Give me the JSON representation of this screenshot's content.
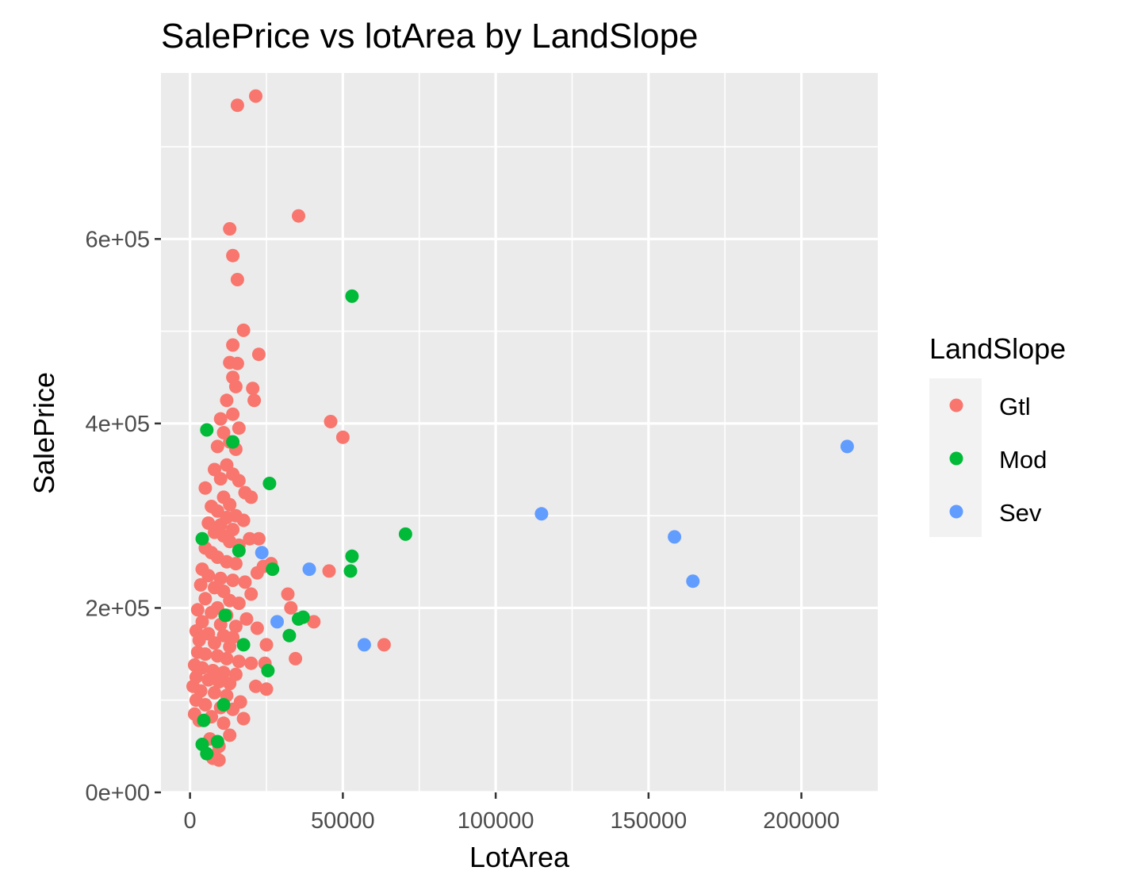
{
  "chart_data": {
    "type": "scatter",
    "title": "SalePrice vs lotArea by LandSlope",
    "xlabel": "LotArea",
    "ylabel": "SalePrice",
    "xlim": [
      -9500,
      225000
    ],
    "ylim": [
      0,
      780000
    ],
    "x_ticks": [
      0,
      50000,
      100000,
      150000,
      200000
    ],
    "x_tick_labels": [
      "0",
      "50000",
      "100000",
      "150000",
      "200000"
    ],
    "y_ticks": [
      0,
      200000,
      400000,
      600000
    ],
    "y_tick_labels": [
      "0e+00",
      "2e+05",
      "4e+05",
      "6e+05"
    ],
    "grid": true,
    "legend": {
      "title": "LandSlope",
      "position": "right"
    },
    "series": [
      {
        "name": "Gtl",
        "color": "#F8766D",
        "points": [
          [
            15500,
            745000
          ],
          [
            21500,
            755000
          ],
          [
            35500,
            625000
          ],
          [
            13000,
            611000
          ],
          [
            14000,
            582000
          ],
          [
            15500,
            556000
          ],
          [
            17500,
            501000
          ],
          [
            14000,
            485000
          ],
          [
            22500,
            475000
          ],
          [
            13000,
            466000
          ],
          [
            15500,
            465000
          ],
          [
            14000,
            450000
          ],
          [
            15000,
            440000
          ],
          [
            20500,
            438000
          ],
          [
            21000,
            425000
          ],
          [
            12000,
            425000
          ],
          [
            46000,
            402000
          ],
          [
            50000,
            385000
          ],
          [
            14000,
            410000
          ],
          [
            10000,
            405000
          ],
          [
            16000,
            395000
          ],
          [
            11000,
            390000
          ],
          [
            13000,
            380000
          ],
          [
            9000,
            375000
          ],
          [
            15000,
            372000
          ],
          [
            8000,
            350000
          ],
          [
            12000,
            355000
          ],
          [
            14000,
            345000
          ],
          [
            10000,
            340000
          ],
          [
            16000,
            338000
          ],
          [
            5000,
            330000
          ],
          [
            18000,
            325000
          ],
          [
            11000,
            320000
          ],
          [
            20000,
            320000
          ],
          [
            13000,
            312000
          ],
          [
            7000,
            310000
          ],
          [
            9000,
            305000
          ],
          [
            15000,
            300000
          ],
          [
            12000,
            298000
          ],
          [
            17500,
            295000
          ],
          [
            6000,
            292000
          ],
          [
            10000,
            290000
          ],
          [
            14000,
            285000
          ],
          [
            19500,
            275000
          ],
          [
            22500,
            275000
          ],
          [
            8000,
            282000
          ],
          [
            11000,
            278000
          ],
          [
            13000,
            272000
          ],
          [
            16000,
            268000
          ],
          [
            5000,
            265000
          ],
          [
            7000,
            260000
          ],
          [
            9000,
            255000
          ],
          [
            12000,
            250000
          ],
          [
            15000,
            248000
          ],
          [
            26500,
            248000
          ],
          [
            24000,
            245000
          ],
          [
            45500,
            240000
          ],
          [
            22000,
            238000
          ],
          [
            4000,
            242000
          ],
          [
            6000,
            235000
          ],
          [
            10000,
            232000
          ],
          [
            14000,
            230000
          ],
          [
            18000,
            228000
          ],
          [
            3500,
            225000
          ],
          [
            8000,
            222000
          ],
          [
            11000,
            218000
          ],
          [
            20000,
            215000
          ],
          [
            32000,
            215000
          ],
          [
            5000,
            210000
          ],
          [
            13000,
            208000
          ],
          [
            16000,
            205000
          ],
          [
            9000,
            200000
          ],
          [
            33000,
            200000
          ],
          [
            2500,
            198000
          ],
          [
            7000,
            195000
          ],
          [
            12000,
            192000
          ],
          [
            18500,
            188000
          ],
          [
            40500,
            185000
          ],
          [
            4000,
            185000
          ],
          [
            10000,
            182000
          ],
          [
            15000,
            180000
          ],
          [
            22000,
            178000
          ],
          [
            2000,
            175000
          ],
          [
            6000,
            172000
          ],
          [
            11000,
            170000
          ],
          [
            14000,
            168000
          ],
          [
            25000,
            160000
          ],
          [
            63500,
            160000
          ],
          [
            3000,
            165000
          ],
          [
            8000,
            162000
          ],
          [
            13000,
            158000
          ],
          [
            34500,
            145000
          ],
          [
            2500,
            152000
          ],
          [
            5000,
            150000
          ],
          [
            9000,
            148000
          ],
          [
            12000,
            145000
          ],
          [
            16000,
            142000
          ],
          [
            20000,
            140000
          ],
          [
            24500,
            140000
          ],
          [
            1500,
            138000
          ],
          [
            4000,
            135000
          ],
          [
            7500,
            132000
          ],
          [
            11000,
            130000
          ],
          [
            15000,
            128000
          ],
          [
            2000,
            125000
          ],
          [
            6000,
            122000
          ],
          [
            9500,
            120000
          ],
          [
            13000,
            118000
          ],
          [
            21500,
            115000
          ],
          [
            25000,
            112000
          ],
          [
            1000,
            115000
          ],
          [
            3500,
            110000
          ],
          [
            8000,
            108000
          ],
          [
            12000,
            105000
          ],
          [
            16500,
            98000
          ],
          [
            2000,
            100000
          ],
          [
            5000,
            95000
          ],
          [
            10000,
            92000
          ],
          [
            14000,
            90000
          ],
          [
            1500,
            85000
          ],
          [
            7000,
            82000
          ],
          [
            17500,
            80000
          ],
          [
            3000,
            78000
          ],
          [
            11000,
            75000
          ],
          [
            13000,
            62000
          ],
          [
            6500,
            58000
          ],
          [
            9500,
            50000
          ],
          [
            8000,
            40000
          ],
          [
            7500,
            37000
          ],
          [
            9500,
            35000
          ]
        ]
      },
      {
        "name": "Mod",
        "color": "#00BA38",
        "points": [
          [
            53000,
            538000
          ],
          [
            5500,
            393000
          ],
          [
            14000,
            380000
          ],
          [
            26000,
            335000
          ],
          [
            70500,
            280000
          ],
          [
            4000,
            275000
          ],
          [
            16000,
            262000
          ],
          [
            53000,
            256000
          ],
          [
            27000,
            242000
          ],
          [
            52500,
            240000
          ],
          [
            11500,
            192000
          ],
          [
            37000,
            190000
          ],
          [
            35500,
            188000
          ],
          [
            32500,
            170000
          ],
          [
            17500,
            160000
          ],
          [
            25500,
            132000
          ],
          [
            11000,
            95000
          ],
          [
            4500,
            78000
          ],
          [
            4000,
            52000
          ],
          [
            5500,
            42000
          ],
          [
            9000,
            55000
          ]
        ]
      },
      {
        "name": "Sev",
        "color": "#619CFF",
        "points": [
          [
            215000,
            375000
          ],
          [
            115000,
            302000
          ],
          [
            158500,
            277000
          ],
          [
            164500,
            229000
          ],
          [
            39000,
            242000
          ],
          [
            28500,
            185000
          ],
          [
            57000,
            160000
          ],
          [
            23500,
            260000
          ]
        ]
      }
    ]
  }
}
